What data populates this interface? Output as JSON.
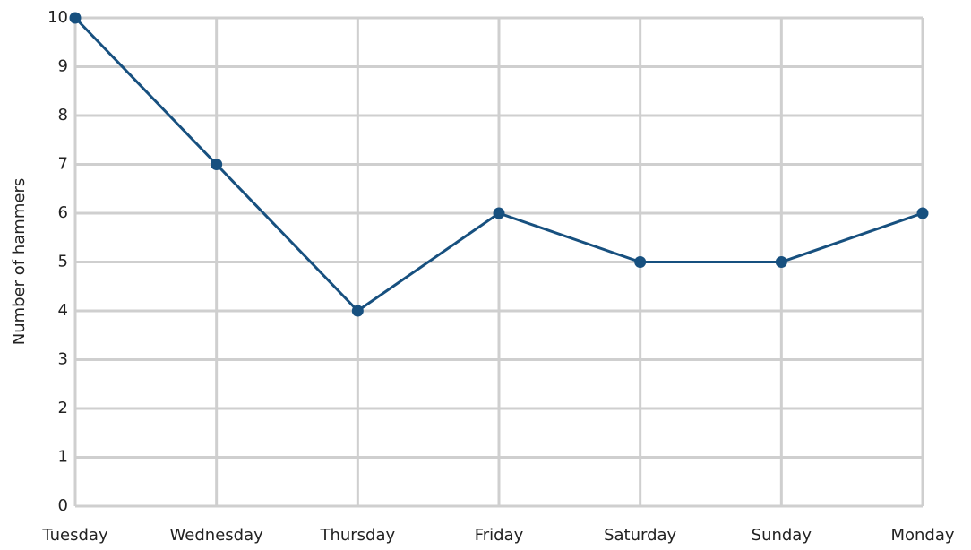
{
  "chart_data": {
    "type": "line",
    "ylabel": "Number of hammers",
    "categories": [
      "Tuesday",
      "Wednesday",
      "Thursday",
      "Friday",
      "Saturday",
      "Sunday",
      "Monday"
    ],
    "series": [
      {
        "name": "Hammers",
        "color": "#17507f",
        "values": [
          10,
          7,
          4,
          6,
          5,
          5,
          6
        ]
      }
    ],
    "ylim": [
      0,
      10
    ],
    "yticks": [
      0,
      1,
      2,
      3,
      4,
      5,
      6,
      7,
      8,
      9,
      10
    ],
    "grid": true
  }
}
